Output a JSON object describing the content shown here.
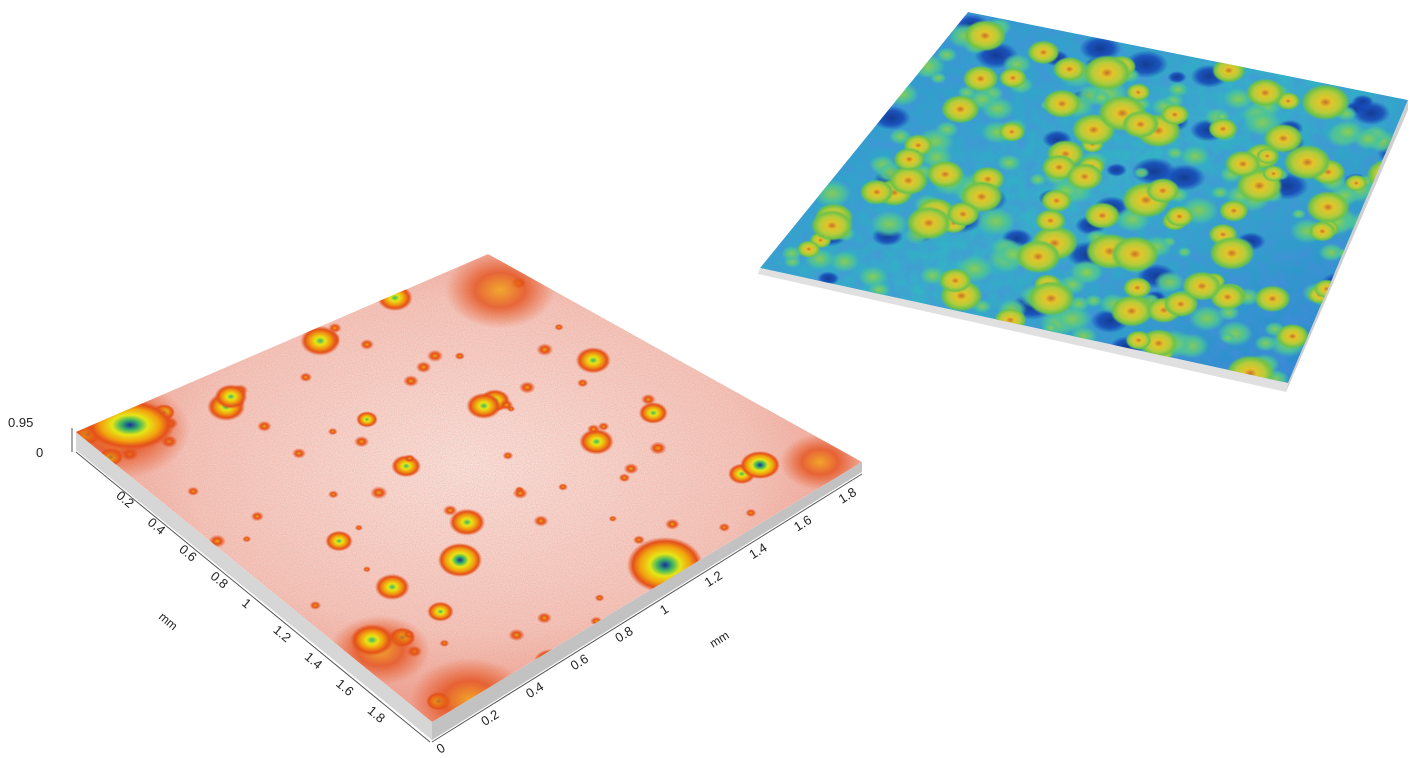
{
  "left_plot": {
    "z_axis": {
      "top_label": "0.95",
      "bottom_label": "0"
    },
    "x_axis": {
      "unit": "mm",
      "ticks": [
        "0.2",
        "0.4",
        "0.6",
        "0.8",
        "1",
        "1.2",
        "1.4",
        "1.6",
        "1.8"
      ]
    },
    "y_axis": {
      "unit": "mm",
      "ticks": [
        "0",
        "0.2",
        "0.4",
        "0.6",
        "0.8",
        "1",
        "1.2",
        "1.4",
        "1.6",
        "1.8"
      ]
    },
    "colors": {
      "surface_base": "#ef9a8a",
      "surface_light": "#f8efec",
      "bump_outer": "#e4501a",
      "bump_mid": "#f2a20f",
      "bump_inner": "#e6e616",
      "bump_core": "#3ab463",
      "pit_core": "#1830a0"
    }
  },
  "right_plot": {
    "colors": {
      "surface_base": "#2a9ad4",
      "surface_deep": "#1546b8",
      "surface_mid": "#3fc4b0",
      "bump_green": "#6cc24a",
      "bump_yellow": "#e2c52a",
      "bump_peak": "#c8702a",
      "base_plate": "#e0e0e0"
    }
  }
}
